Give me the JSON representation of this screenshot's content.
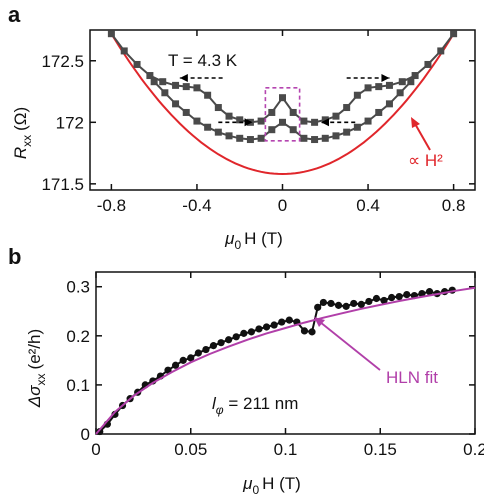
{
  "colors": {
    "data_a": "#4a4a4a",
    "fit_a": "#e0262b",
    "box": "#b545b0",
    "data_b": "#111111",
    "fit_b": "#b13fa9",
    "axis": "#111111"
  },
  "chart_data": [
    {
      "panel": "a",
      "type": "line",
      "ylabel_main": "R",
      "ylabel_sub": "xx",
      "ylabel_unit": "(Ω)",
      "xlabel_main": "μ",
      "xlabel_sub": "0",
      "xlabel_unit": "H (T)",
      "xlim": [
        -0.9,
        0.9
      ],
      "ylim": [
        171.45,
        172.75
      ],
      "x_ticks": [
        -0.8,
        -0.4,
        0,
        0.4,
        0.8
      ],
      "x_tick_labels": [
        "-0.8",
        "-0.4",
        "0",
        "0.4",
        "0.8"
      ],
      "y_ticks": [
        171.5,
        172,
        172.5
      ],
      "y_tick_labels": [
        "171.5",
        "172",
        "172.5"
      ],
      "temperature_label": "T = 4.3 K",
      "fit_label": "∝ H²",
      "arrow_directions": [
        "left",
        "right",
        "right",
        "left"
      ],
      "series": [
        {
          "marker": "square",
          "x": [
            -0.8,
            -0.74,
            -0.68,
            -0.62,
            -0.56,
            -0.5,
            -0.45,
            -0.4,
            -0.35,
            -0.3,
            -0.25,
            -0.2,
            -0.15,
            -0.1,
            -0.05,
            0,
            0.05,
            0.1,
            0.15,
            0.2,
            0.25,
            0.3,
            0.35,
            0.4,
            0.45,
            0.5,
            0.56,
            0.62,
            0.68,
            0.74,
            0.8
          ],
          "y": [
            172.72,
            172.58,
            172.47,
            172.38,
            172.33,
            172.3,
            172.29,
            172.28,
            172.22,
            172.12,
            172.05,
            172.02,
            172.0,
            172.01,
            172.08,
            172.2,
            172.08,
            172.01,
            172.0,
            172.02,
            172.05,
            172.12,
            172.22,
            172.28,
            172.29,
            172.3,
            172.33,
            172.38,
            172.47,
            172.58,
            172.72
          ]
        },
        {
          "marker": "square",
          "x": [
            -0.6,
            -0.55,
            -0.5,
            -0.45,
            -0.4,
            -0.35,
            -0.3,
            -0.25,
            -0.2,
            -0.15,
            -0.1,
            -0.05,
            0,
            0.05,
            0.1,
            0.15,
            0.2,
            0.25,
            0.3,
            0.35,
            0.4,
            0.45,
            0.5,
            0.55,
            0.6
          ],
          "y": [
            172.33,
            172.24,
            172.15,
            172.08,
            172.01,
            171.96,
            171.92,
            171.89,
            171.87,
            171.86,
            171.87,
            171.94,
            172.0,
            171.94,
            171.87,
            171.86,
            171.87,
            171.89,
            171.92,
            171.96,
            172.01,
            172.08,
            172.15,
            172.24,
            172.33
          ]
        }
      ],
      "fit": {
        "x0": 0,
        "y0": 171.58,
        "a": 1.78
      },
      "highlight_box": {
        "x": [
          -0.08,
          0.08
        ],
        "y": [
          171.85,
          172.28
        ]
      }
    },
    {
      "panel": "b",
      "type": "line",
      "ylabel_main": "Δσ",
      "ylabel_sub": "xx",
      "ylabel_unit": "(e²/h)",
      "xlabel_main": "μ",
      "xlabel_sub": "0",
      "xlabel_unit": "H (T)",
      "xlim": [
        0,
        0.2
      ],
      "ylim": [
        0,
        0.33
      ],
      "x_ticks": [
        0,
        0.05,
        0.1,
        0.15,
        0.2
      ],
      "x_tick_labels": [
        "0",
        "0.05",
        "0.1",
        "0.15",
        "0.2"
      ],
      "y_ticks": [
        0,
        0.1,
        0.2,
        0.3
      ],
      "y_tick_labels": [
        "0",
        "0.1",
        "0.2",
        "0.3"
      ],
      "phase_label_main": "l",
      "phase_label_sub": "φ",
      "phase_label_value": " = 211 nm",
      "fit_name": "HLN fit",
      "series": [
        {
          "marker": "circle",
          "x": [
            0.002,
            0.006,
            0.01,
            0.014,
            0.018,
            0.022,
            0.026,
            0.03,
            0.034,
            0.038,
            0.042,
            0.046,
            0.05,
            0.054,
            0.058,
            0.062,
            0.066,
            0.07,
            0.074,
            0.078,
            0.082,
            0.086,
            0.09,
            0.094,
            0.098,
            0.102,
            0.106,
            0.11,
            0.114,
            0.117,
            0.12,
            0.124,
            0.128,
            0.132,
            0.136,
            0.14,
            0.144,
            0.148,
            0.152,
            0.156,
            0.16,
            0.164,
            0.168,
            0.172,
            0.176,
            0.18,
            0.184,
            0.188
          ],
          "y": [
            0.005,
            0.02,
            0.04,
            0.058,
            0.072,
            0.085,
            0.1,
            0.108,
            0.118,
            0.13,
            0.14,
            0.15,
            0.155,
            0.165,
            0.172,
            0.18,
            0.186,
            0.192,
            0.198,
            0.205,
            0.208,
            0.214,
            0.218,
            0.222,
            0.228,
            0.232,
            0.228,
            0.21,
            0.208,
            0.258,
            0.268,
            0.266,
            0.262,
            0.26,
            0.266,
            0.264,
            0.27,
            0.276,
            0.272,
            0.278,
            0.28,
            0.284,
            0.282,
            0.286,
            0.29,
            0.286,
            0.29,
            0.293
          ]
        }
      ],
      "fit": {
        "x": [
          0,
          0.01,
          0.02,
          0.03,
          0.04,
          0.05,
          0.06,
          0.07,
          0.08,
          0.09,
          0.1,
          0.11,
          0.12,
          0.13,
          0.14,
          0.15,
          0.16,
          0.17,
          0.18,
          0.19,
          0.2
        ],
        "y": [
          0,
          0.045,
          0.078,
          0.104,
          0.126,
          0.146,
          0.163,
          0.178,
          0.192,
          0.205,
          0.216,
          0.227,
          0.237,
          0.246,
          0.255,
          0.263,
          0.271,
          0.278,
          0.285,
          0.292,
          0.298
        ]
      }
    }
  ]
}
